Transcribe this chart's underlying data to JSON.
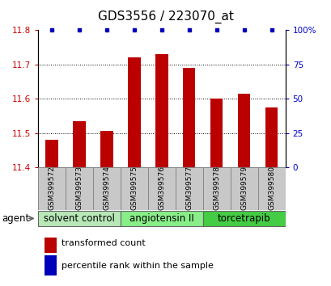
{
  "title": "GDS3556 / 223070_at",
  "samples": [
    "GSM399572",
    "GSM399573",
    "GSM399574",
    "GSM399575",
    "GSM399576",
    "GSM399577",
    "GSM399578",
    "GSM399579",
    "GSM399580"
  ],
  "bar_values": [
    11.48,
    11.535,
    11.505,
    11.72,
    11.73,
    11.69,
    11.6,
    11.615,
    11.575
  ],
  "percentile_values": [
    100,
    100,
    100,
    100,
    100,
    100,
    100,
    100,
    100
  ],
  "bar_bottom": 11.4,
  "ylim_left": [
    11.4,
    11.8
  ],
  "ylim_right": [
    0,
    100
  ],
  "yticks_left": [
    11.4,
    11.5,
    11.6,
    11.7,
    11.8
  ],
  "yticks_right": [
    0,
    25,
    50,
    75,
    100
  ],
  "bar_color": "#bb0000",
  "dot_color": "#0000bb",
  "agent_groups": [
    {
      "label": "solvent control",
      "start": 0,
      "end": 3,
      "color": "#b8e8b8"
    },
    {
      "label": "angiotensin II",
      "start": 3,
      "end": 6,
      "color": "#88ee88"
    },
    {
      "label": "torcetrapib",
      "start": 6,
      "end": 9,
      "color": "#44cc44"
    }
  ],
  "agent_label": "agent",
  "legend_items": [
    {
      "label": "transformed count",
      "color": "#bb0000"
    },
    {
      "label": "percentile rank within the sample",
      "color": "#0000bb"
    }
  ],
  "bar_width": 0.45,
  "title_fontsize": 11,
  "tick_fontsize": 7.5,
  "sample_label_fontsize": 6.5,
  "agent_fontsize": 8.5,
  "legend_fontsize": 8,
  "left_tick_color": "#cc0000",
  "right_tick_color": "#0000cc",
  "sample_bg_color": "#c8c8c8",
  "sample_border_color": "#888888"
}
